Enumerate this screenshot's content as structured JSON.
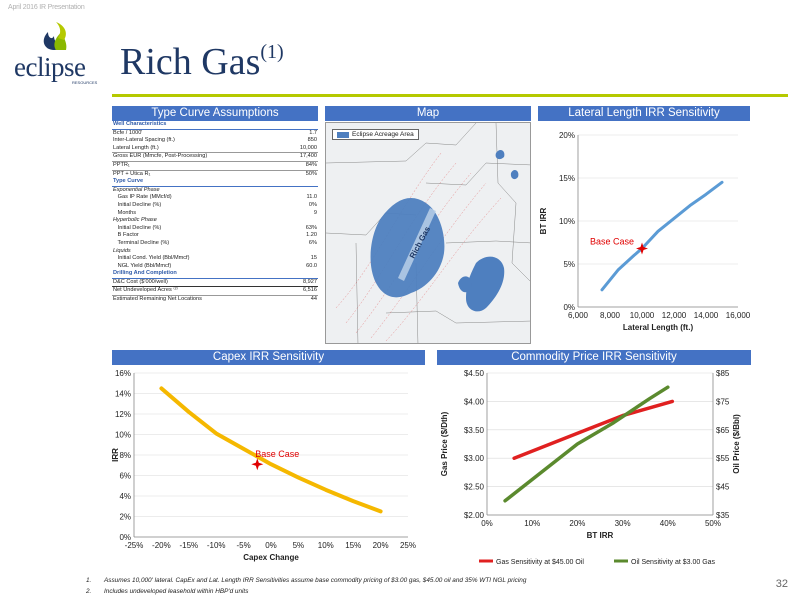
{
  "header_tag": "April 2016 IR Presentation",
  "logo": {
    "text": "eclipse",
    "sub": "RESOURCES"
  },
  "title": {
    "main": "Rich Gas",
    "sup": "(1)"
  },
  "type_curve": {
    "heading": "Type Curve Assumptions",
    "rows": [
      {
        "label": "Well Characteristics",
        "value": "",
        "style": "sec"
      },
      {
        "label": "Bcfe / 1000'",
        "value": "1.7",
        "style": ""
      },
      {
        "label": "Inter-Lateral Spacing (ft.)",
        "value": "850",
        "style": ""
      },
      {
        "label": "Lateral Length (ft.)",
        "value": "10,000",
        "style": "line"
      },
      {
        "label": "Gross EUR (Mmcfe, Post-Processing)",
        "value": "17,400",
        "style": "line"
      },
      {
        "label": "PPTR₁",
        "value": "84%",
        "style": "line"
      },
      {
        "label": "PPT + Utica R₁",
        "value": "50%",
        "style": ""
      },
      {
        "label": "Type Curve",
        "value": "",
        "style": "sec"
      },
      {
        "label": "Exponential Phase",
        "value": "",
        "style": "ital"
      },
      {
        "label": "   Gas IP Rate (MMcf/d)",
        "value": "11.0",
        "style": ""
      },
      {
        "label": "   Initial Decline (%)",
        "value": "0%",
        "style": ""
      },
      {
        "label": "   Months",
        "value": "9",
        "style": ""
      },
      {
        "label": "Hyperbolic Phase",
        "value": "",
        "style": "ital"
      },
      {
        "label": "   Initial Decline (%)",
        "value": "63%",
        "style": ""
      },
      {
        "label": "   B Factor",
        "value": "1.20",
        "style": ""
      },
      {
        "label": "   Terminal Decline (%)",
        "value": "6%",
        "style": ""
      },
      {
        "label": "Liquids",
        "value": "",
        "style": "ital"
      },
      {
        "label": "   Initial Cond. Yield (Bbl/Mmcf)",
        "value": "15",
        "style": ""
      },
      {
        "label": "   NGL Yield (Bbl/Mmcf)",
        "value": "60.0",
        "style": ""
      },
      {
        "label": "Drilling And Completion",
        "value": "",
        "style": "sec"
      },
      {
        "label": "D&C Cost ($'000/well)",
        "value": "8,927",
        "style": "dark"
      },
      {
        "label": "Net Undeveloped Acres ⁽²⁾",
        "value": "6,516",
        "style": "line"
      },
      {
        "label": "Estimated Remaining Net Locations",
        "value": "44",
        "style": ""
      }
    ]
  },
  "map": {
    "heading": "Map",
    "legend": "Eclipse Acreage Area",
    "region_label": "Rich Gas",
    "colors": {
      "acreage": "#4e7fbf",
      "background": "#eef0f2"
    }
  },
  "chart_data": [
    {
      "id": "lateral",
      "type": "line",
      "title": "Lateral Length IRR Sensitivity",
      "xlabel": "Lateral Length (ft.)",
      "ylabel": "BT IRR",
      "xlim": [
        6000,
        16000
      ],
      "ylim": [
        0,
        0.2
      ],
      "xticks": [
        "6,000",
        "8,000",
        "10,000",
        "12,000",
        "14,000",
        "16,000"
      ],
      "yticks": [
        "0%",
        "5%",
        "10%",
        "15%",
        "20%"
      ],
      "series": [
        {
          "name": "",
          "color": "#5b9bd5",
          "x": [
            7500,
            8500,
            9500,
            10000,
            11000,
            12000,
            13000,
            14000,
            15000
          ],
          "y": [
            0.02,
            0.043,
            0.06,
            0.068,
            0.088,
            0.103,
            0.118,
            0.131,
            0.145
          ]
        }
      ],
      "annotation": {
        "text": "Base Case",
        "x": 10000,
        "y": 0.068,
        "color": "#e00000"
      }
    },
    {
      "id": "capex",
      "type": "line",
      "title": "Capex IRR Sensitivity",
      "xlabel": "Capex Change",
      "ylabel": "IRR",
      "xlim": [
        -0.25,
        0.25
      ],
      "ylim": [
        0,
        0.16
      ],
      "xticks": [
        "-25%",
        "-20%",
        "-15%",
        "-10%",
        "-5%",
        "0%",
        "5%",
        "10%",
        "15%",
        "20%",
        "25%"
      ],
      "yticks": [
        "0%",
        "2%",
        "4%",
        "6%",
        "8%",
        "10%",
        "12%",
        "14%",
        "16%"
      ],
      "series": [
        {
          "name": "",
          "color": "#f5b800",
          "x": [
            -0.2,
            -0.15,
            -0.1,
            -0.05,
            0.0,
            0.05,
            0.1,
            0.15,
            0.2
          ],
          "y": [
            0.145,
            0.122,
            0.101,
            0.086,
            0.071,
            0.058,
            0.046,
            0.035,
            0.025
          ]
        }
      ],
      "annotation": {
        "text": "Base Case",
        "x": -0.025,
        "y": 0.071,
        "color": "#e00000"
      }
    },
    {
      "id": "commodity",
      "type": "line",
      "title": "Commodity Price IRR Sensitivity",
      "xlabel": "BT IRR",
      "ylabel": "Gas Price ($/Dth)",
      "y2label": "Oil Price ($/Bbl)",
      "xlim": [
        0,
        0.5
      ],
      "ylim": [
        2.0,
        4.5
      ],
      "y2lim": [
        35,
        85
      ],
      "xticks": [
        "0%",
        "10%",
        "20%",
        "30%",
        "40%",
        "50%"
      ],
      "yticks": [
        "$2.00",
        "$2.50",
        "$3.00",
        "$3.50",
        "$4.00",
        "$4.50"
      ],
      "y2ticks": [
        "$35",
        "$45",
        "$55",
        "$65",
        "$75",
        "$85"
      ],
      "series": [
        {
          "name": "Gas Sensitivity at $45.00 Oil",
          "color": "#e02020",
          "axis": "left",
          "x": [
            0.06,
            0.14,
            0.22,
            0.3,
            0.41
          ],
          "y": [
            3.0,
            3.25,
            3.5,
            3.75,
            4.0
          ]
        },
        {
          "name": "Oil Sensitivity at $3.00 Gas",
          "color": "#5b8a2e",
          "axis": "right",
          "x": [
            0.04,
            0.12,
            0.2,
            0.28,
            0.36,
            0.4
          ],
          "y": [
            40,
            50,
            60,
            67.5,
            76,
            80
          ]
        }
      ]
    }
  ],
  "footnotes": [
    {
      "num": "1.",
      "text": "Assumes 10,000' lateral. CapEx and Lat. Length IRR Sensitivities assume base commodity pricing of $3.00 gas, $45.00 oil and 35% WTI NGL pricing"
    },
    {
      "num": "2.",
      "text": "Includes undeveloped leasehold within HBP'd units"
    }
  ],
  "page_number": "32"
}
